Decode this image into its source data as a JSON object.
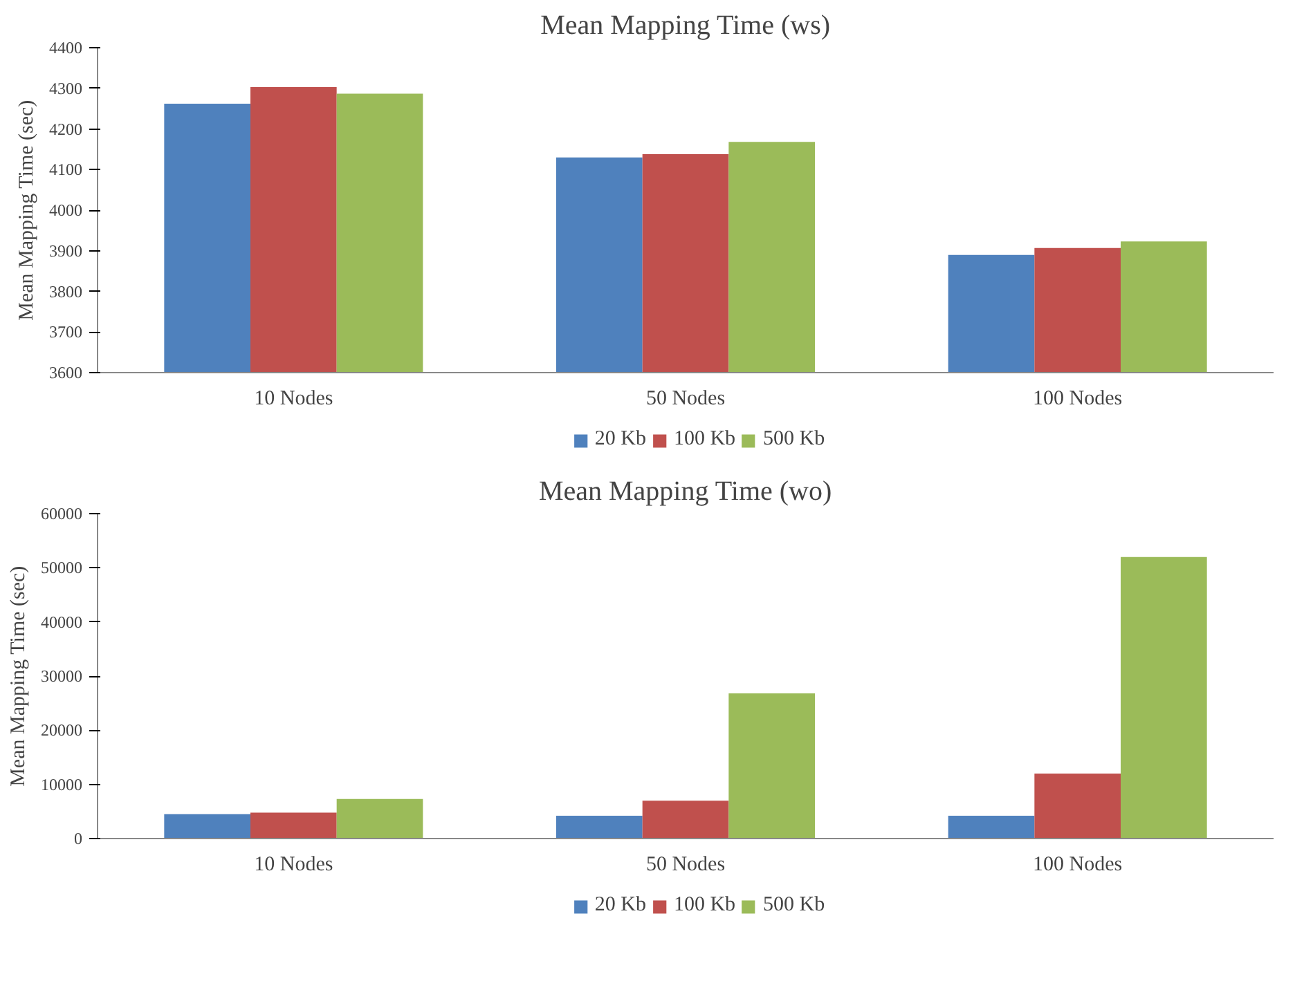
{
  "chart_data": [
    {
      "type": "bar",
      "title": "Mean Mapping Time (ws)",
      "ylabel": "Mean Mapping Time (sec)",
      "categories": [
        "10 Nodes",
        "50 Nodes",
        "100 Nodes"
      ],
      "ylim": [
        3600,
        4400
      ],
      "yticks": [
        3600,
        3700,
        3800,
        3900,
        4000,
        4100,
        4200,
        4300,
        4400
      ],
      "grid": false,
      "legend": "bottom",
      "series": [
        {
          "name": "20 Kb",
          "color": "#4f81bd",
          "values": [
            4262,
            4130,
            3890
          ]
        },
        {
          "name": "100 Kb",
          "color": "#c0504d",
          "values": [
            4303,
            4138,
            3907
          ]
        },
        {
          "name": "500 Kb",
          "color": "#9bbb59",
          "values": [
            4287,
            4168,
            3923
          ]
        }
      ]
    },
    {
      "type": "bar",
      "title": "Mean Mapping Time (wo)",
      "ylabel": "Mean Mapping Time (sec)",
      "categories": [
        "10 Nodes",
        "50 Nodes",
        "100 Nodes"
      ],
      "ylim": [
        0,
        60000
      ],
      "yticks": [
        0,
        10000,
        20000,
        30000,
        40000,
        50000,
        60000
      ],
      "grid": false,
      "legend": "bottom",
      "series": [
        {
          "name": "20 Kb",
          "color": "#4f81bd",
          "values": [
            4500,
            4200,
            4200
          ]
        },
        {
          "name": "100 Kb",
          "color": "#c0504d",
          "values": [
            4800,
            7000,
            12000
          ]
        },
        {
          "name": "500 Kb",
          "color": "#9bbb59",
          "values": [
            7300,
            26800,
            52000
          ]
        }
      ]
    }
  ]
}
